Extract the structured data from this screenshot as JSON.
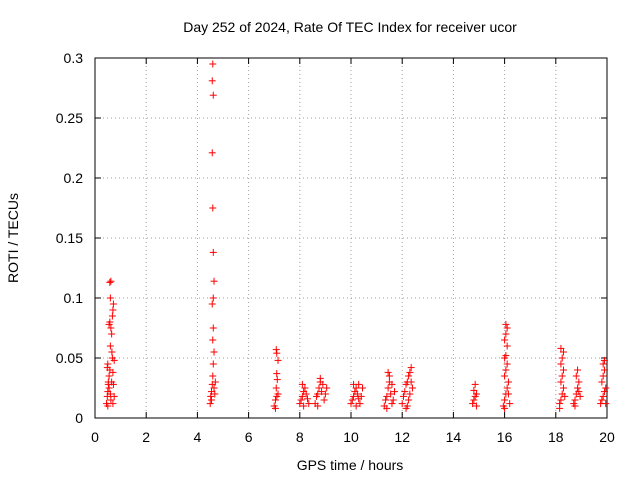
{
  "chart_data": {
    "type": "scatter",
    "title": "Day 252 of 2024, Rate Of TEC Index for receiver ucor",
    "xlabel": "GPS time / hours",
    "ylabel": "ROTI / TECUs",
    "xlim": [
      0,
      20
    ],
    "ylim": [
      0,
      0.3
    ],
    "x_ticks": [
      "0",
      "2",
      "4",
      "6",
      "8",
      "10",
      "12",
      "14",
      "16",
      "18",
      "20"
    ],
    "y_ticks": [
      "0",
      "0.05",
      "0.1",
      "0.15",
      "0.2",
      "0.25",
      "0.3"
    ],
    "grid": true,
    "marker": "+",
    "colors": {
      "points": "#ff0000",
      "grid": "#a0a0a0",
      "axes": "#000000"
    },
    "series": [
      {
        "points": [
          [
            0.45,
            0.012
          ],
          [
            0.48,
            0.018
          ],
          [
            0.5,
            0.022
          ],
          [
            0.52,
            0.028
          ],
          [
            0.55,
            0.035
          ],
          [
            0.58,
            0.04
          ],
          [
            0.5,
            0.045
          ],
          [
            0.52,
            0.03
          ],
          [
            0.55,
            0.025
          ],
          [
            0.6,
            0.02
          ],
          [
            0.62,
            0.015
          ],
          [
            0.65,
            0.03
          ],
          [
            0.68,
            0.05
          ],
          [
            0.7,
            0.038
          ],
          [
            0.72,
            0.028
          ],
          [
            0.6,
            0.06
          ],
          [
            0.55,
            0.078
          ],
          [
            0.58,
            0.08
          ],
          [
            0.62,
            0.075
          ],
          [
            0.65,
            0.07
          ],
          [
            0.7,
            0.09
          ],
          [
            0.72,
            0.095
          ],
          [
            0.6,
            0.1
          ],
          [
            0.58,
            0.113
          ],
          [
            0.62,
            0.114
          ],
          [
            0.68,
            0.085
          ],
          [
            0.5,
            0.01
          ],
          [
            0.7,
            0.012
          ],
          [
            0.75,
            0.018
          ],
          [
            0.48,
            0.042
          ],
          [
            0.75,
            0.048
          ],
          [
            0.66,
            0.055
          ],
          [
            4.5,
            0.012
          ],
          [
            4.52,
            0.018
          ],
          [
            4.55,
            0.022
          ],
          [
            4.58,
            0.028
          ],
          [
            4.6,
            0.035
          ],
          [
            4.62,
            0.045
          ],
          [
            4.65,
            0.055
          ],
          [
            4.6,
            0.065
          ],
          [
            4.62,
            0.075
          ],
          [
            4.58,
            0.095
          ],
          [
            4.62,
            0.1
          ],
          [
            4.65,
            0.114
          ],
          [
            4.62,
            0.138
          ],
          [
            4.6,
            0.175
          ],
          [
            4.58,
            0.221
          ],
          [
            4.62,
            0.269
          ],
          [
            4.58,
            0.281
          ],
          [
            4.6,
            0.295
          ],
          [
            4.68,
            0.02
          ],
          [
            4.7,
            0.03
          ],
          [
            4.55,
            0.015
          ],
          [
            4.65,
            0.025
          ],
          [
            7.0,
            0.01
          ],
          [
            7.05,
            0.015
          ],
          [
            7.1,
            0.018
          ],
          [
            7.15,
            0.02
          ],
          [
            7.08,
            0.025
          ],
          [
            7.12,
            0.032
          ],
          [
            7.1,
            0.037
          ],
          [
            7.15,
            0.048
          ],
          [
            7.1,
            0.054
          ],
          [
            7.08,
            0.057
          ],
          [
            7.05,
            0.008
          ],
          [
            8.0,
            0.012
          ],
          [
            8.05,
            0.015
          ],
          [
            8.1,
            0.018
          ],
          [
            8.15,
            0.022
          ],
          [
            8.2,
            0.025
          ],
          [
            8.25,
            0.02
          ],
          [
            8.1,
            0.028
          ],
          [
            8.3,
            0.016
          ],
          [
            8.35,
            0.012
          ],
          [
            8.15,
            0.01
          ],
          [
            8.6,
            0.012
          ],
          [
            8.65,
            0.018
          ],
          [
            8.7,
            0.02
          ],
          [
            8.75,
            0.025
          ],
          [
            8.8,
            0.03
          ],
          [
            8.85,
            0.022
          ],
          [
            8.9,
            0.028
          ],
          [
            8.95,
            0.015
          ],
          [
            9.0,
            0.02
          ],
          [
            8.8,
            0.033
          ],
          [
            8.7,
            0.01
          ],
          [
            9.05,
            0.025
          ],
          [
            10.0,
            0.012
          ],
          [
            10.05,
            0.015
          ],
          [
            10.1,
            0.018
          ],
          [
            10.15,
            0.022
          ],
          [
            10.2,
            0.025
          ],
          [
            10.25,
            0.02
          ],
          [
            10.3,
            0.016
          ],
          [
            10.35,
            0.012
          ],
          [
            10.4,
            0.018
          ],
          [
            10.45,
            0.025
          ],
          [
            10.1,
            0.028
          ],
          [
            10.3,
            0.028
          ],
          [
            10.2,
            0.01
          ],
          [
            11.3,
            0.01
          ],
          [
            11.35,
            0.015
          ],
          [
            11.4,
            0.018
          ],
          [
            11.45,
            0.025
          ],
          [
            11.5,
            0.03
          ],
          [
            11.55,
            0.02
          ],
          [
            11.6,
            0.028
          ],
          [
            11.65,
            0.015
          ],
          [
            11.5,
            0.035
          ],
          [
            11.45,
            0.038
          ],
          [
            11.6,
            0.012
          ],
          [
            11.7,
            0.022
          ],
          [
            11.4,
            0.008
          ],
          [
            12.0,
            0.012
          ],
          [
            12.05,
            0.018
          ],
          [
            12.1,
            0.022
          ],
          [
            12.15,
            0.028
          ],
          [
            12.2,
            0.03
          ],
          [
            12.25,
            0.035
          ],
          [
            12.3,
            0.038
          ],
          [
            12.35,
            0.042
          ],
          [
            12.3,
            0.02
          ],
          [
            12.2,
            0.01
          ],
          [
            12.25,
            0.015
          ],
          [
            12.4,
            0.025
          ],
          [
            12.15,
            0.008
          ],
          [
            12.35,
            0.03
          ],
          [
            14.75,
            0.012
          ],
          [
            14.8,
            0.015
          ],
          [
            14.85,
            0.018
          ],
          [
            14.9,
            0.02
          ],
          [
            14.8,
            0.023
          ],
          [
            14.85,
            0.028
          ],
          [
            14.9,
            0.01
          ],
          [
            15.95,
            0.01
          ],
          [
            16.0,
            0.015
          ],
          [
            16.05,
            0.02
          ],
          [
            16.1,
            0.025
          ],
          [
            16.15,
            0.03
          ],
          [
            16.0,
            0.035
          ],
          [
            16.05,
            0.04
          ],
          [
            16.1,
            0.045
          ],
          [
            16.0,
            0.05
          ],
          [
            16.05,
            0.052
          ],
          [
            16.1,
            0.06
          ],
          [
            16.0,
            0.065
          ],
          [
            16.05,
            0.07
          ],
          [
            16.1,
            0.075
          ],
          [
            16.05,
            0.078
          ],
          [
            16.15,
            0.02
          ],
          [
            16.2,
            0.012
          ],
          [
            16.0,
            0.008
          ],
          [
            18.15,
            0.012
          ],
          [
            18.2,
            0.015
          ],
          [
            18.25,
            0.02
          ],
          [
            18.3,
            0.025
          ],
          [
            18.2,
            0.03
          ],
          [
            18.25,
            0.035
          ],
          [
            18.3,
            0.04
          ],
          [
            18.2,
            0.045
          ],
          [
            18.25,
            0.05
          ],
          [
            18.3,
            0.055
          ],
          [
            18.2,
            0.058
          ],
          [
            18.35,
            0.018
          ],
          [
            18.15,
            0.008
          ],
          [
            18.7,
            0.012
          ],
          [
            18.75,
            0.015
          ],
          [
            18.8,
            0.02
          ],
          [
            18.85,
            0.025
          ],
          [
            18.9,
            0.03
          ],
          [
            18.8,
            0.035
          ],
          [
            18.85,
            0.04
          ],
          [
            18.9,
            0.022
          ],
          [
            18.75,
            0.01
          ],
          [
            18.95,
            0.018
          ],
          [
            19.75,
            0.012
          ],
          [
            19.8,
            0.015
          ],
          [
            19.85,
            0.018
          ],
          [
            19.9,
            0.022
          ],
          [
            19.95,
            0.025
          ],
          [
            19.8,
            0.03
          ],
          [
            19.85,
            0.035
          ],
          [
            19.9,
            0.04
          ],
          [
            19.85,
            0.045
          ],
          [
            19.9,
            0.048
          ],
          [
            19.95,
            0.012
          ]
        ]
      }
    ]
  }
}
